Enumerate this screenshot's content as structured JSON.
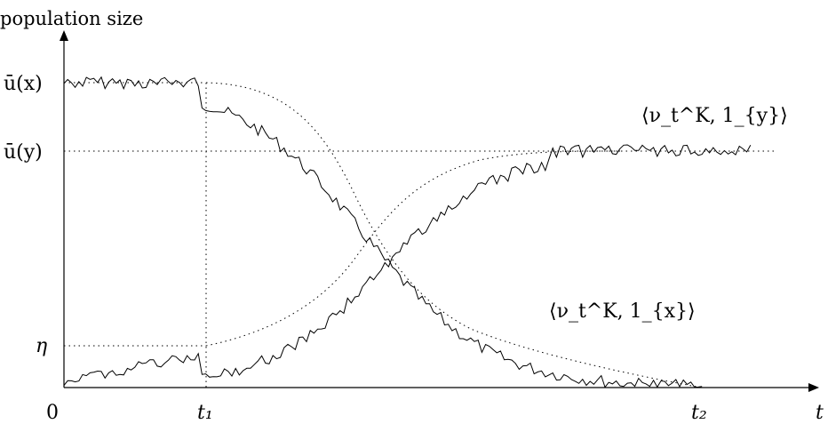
{
  "figure": {
    "y_axis_label": "population size",
    "x_axis_label": "t",
    "origin_label": "0",
    "y_ticks": [
      {
        "label": "ū(x)",
        "value": 1.0
      },
      {
        "label": "ū(y)",
        "value": 0.78
      },
      {
        "label": "η",
        "value": 0.15
      }
    ],
    "x_ticks": [
      {
        "label": "t₁",
        "value": 0.2
      },
      {
        "label": "t₂",
        "value": 0.9
      }
    ],
    "curves": [
      {
        "label": "⟨ν_t^K, 1_{y}⟩",
        "description_shown": "rising noisy curve"
      },
      {
        "label": "⟨ν_t^K, 1_{x}⟩",
        "description_shown": "falling noisy curve"
      }
    ]
  }
}
